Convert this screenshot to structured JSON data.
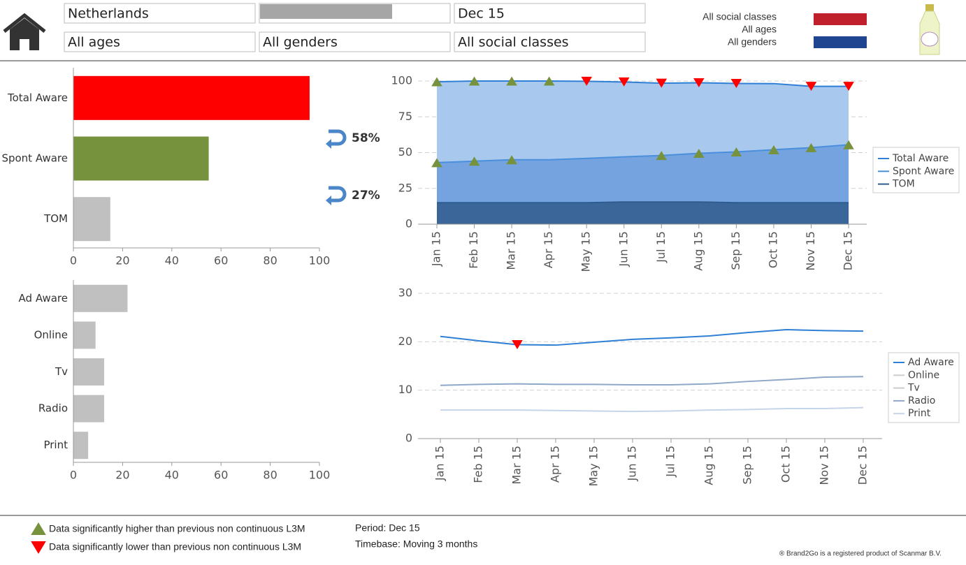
{
  "header": {
    "filters": {
      "country": "Netherlands",
      "period": "Dec 15",
      "age": "All ages",
      "gender": "All genders",
      "social_class": "All social classes"
    },
    "selection_labels": [
      "All social classes",
      "All ages",
      "All genders"
    ],
    "selection_colors": [
      "#c0202b",
      "#1f4591"
    ]
  },
  "significance_colors": {
    "up": "#76923c",
    "down": "#ff0000"
  },
  "chart_data": [
    {
      "type": "hbar",
      "categories": [
        "Total Aware",
        "Spont Aware",
        "TOM"
      ],
      "values": [
        96,
        55,
        15
      ],
      "colors": [
        "#ff0000",
        "#76923c",
        "#c0c0c0"
      ],
      "xlim": [
        0,
        100
      ],
      "xticks": [
        0,
        20,
        40,
        60,
        80,
        100
      ],
      "annotations": [
        {
          "text": "58%",
          "color": "#76923c"
        },
        {
          "text": "27%",
          "color": "#c00000"
        }
      ]
    },
    {
      "type": "area",
      "categories": [
        "Jan 15",
        "Feb 15",
        "Mar 15",
        "Apr 15",
        "May 15",
        "Jun 15",
        "Jul 15",
        "Aug 15",
        "Sep 15",
        "Oct 15",
        "Nov 15",
        "Dec 15"
      ],
      "ylim": [
        0,
        105
      ],
      "yticks": [
        0,
        25,
        50,
        75,
        100
      ],
      "grid": true,
      "series": [
        {
          "name": "Total Aware",
          "color": "#2e7fd6",
          "fill": "#a9c8ee",
          "values": [
            99.5,
            100,
            100,
            100,
            99.8,
            99.3,
            98.5,
            98.8,
            98.3,
            98.2,
            96.3,
            96.3
          ],
          "markers": [
            "up",
            "up",
            "up",
            "up",
            "down",
            "down",
            "down",
            "down",
            "down",
            null,
            "down",
            "down"
          ]
        },
        {
          "name": "Spont Aware",
          "color": "#4a8fdb",
          "fill": "#74a3e0",
          "values": [
            43,
            44,
            45,
            45,
            46,
            47,
            48,
            49.5,
            50.5,
            52,
            53.5,
            55.5
          ],
          "markers": [
            "up",
            "up",
            "up",
            null,
            null,
            null,
            "up",
            "up",
            "up",
            "up",
            "up",
            "up"
          ]
        },
        {
          "name": "TOM",
          "color": "#2f5c8f",
          "fill": "#3a6699",
          "values": [
            15,
            15,
            15,
            15,
            15,
            15.5,
            15.5,
            15.5,
            15,
            15,
            15,
            15
          ],
          "markers": [
            null,
            null,
            null,
            null,
            null,
            null,
            null,
            null,
            null,
            null,
            null,
            null
          ]
        }
      ]
    },
    {
      "type": "line",
      "categories": [
        "Jan 15",
        "Feb 15",
        "Mar 15",
        "Apr 15",
        "May 15",
        "Jun 15",
        "Jul 15",
        "Aug 15",
        "Sep 15",
        "Oct 15",
        "Nov 15",
        "Dec 15"
      ],
      "ylim": [
        0,
        30
      ],
      "yticks": [
        0,
        10,
        20,
        30
      ],
      "grid": true,
      "series": [
        {
          "name": "Ad Aware",
          "color": "#2e7fd6",
          "visible": true,
          "values": [
            21.1,
            20.2,
            19.4,
            19.3,
            19.9,
            20.5,
            20.8,
            21.2,
            21.9,
            22.5,
            22.3,
            22.2
          ],
          "markers": [
            null,
            null,
            "down",
            null,
            null,
            null,
            null,
            null,
            null,
            null,
            null,
            null
          ]
        },
        {
          "name": "Online",
          "color": "#cccccc",
          "visible": false
        },
        {
          "name": "Tv",
          "color": "#cccccc",
          "visible": false
        },
        {
          "name": "Radio",
          "color": "#8fa8c8",
          "visible": true,
          "values": [
            11,
            11.2,
            11.3,
            11.2,
            11.2,
            11.1,
            11.1,
            11.3,
            11.8,
            12.2,
            12.7,
            12.8
          ],
          "markers": [
            null,
            null,
            null,
            null,
            null,
            null,
            null,
            null,
            null,
            null,
            null,
            null
          ]
        },
        {
          "name": "Print",
          "color": "#c5d5ea",
          "visible": true,
          "values": [
            5.9,
            5.9,
            5.9,
            5.8,
            5.7,
            5.6,
            5.7,
            5.9,
            6.0,
            6.2,
            6.2,
            6.4
          ],
          "markers": [
            null,
            null,
            null,
            null,
            null,
            null,
            null,
            null,
            null,
            null,
            null,
            null
          ]
        }
      ]
    },
    {
      "type": "hbar",
      "categories": [
        "Ad Aware",
        "Online",
        "Tv",
        "Radio",
        "Print"
      ],
      "values": [
        22,
        9,
        12.5,
        12.5,
        6
      ],
      "colors": [
        "#c0c0c0",
        "#c0c0c0",
        "#c0c0c0",
        "#c0c0c0",
        "#c0c0c0"
      ],
      "xlim": [
        0,
        100
      ],
      "xticks": [
        0,
        20,
        40,
        60,
        80,
        100
      ]
    }
  ],
  "footer": {
    "higher": "Data significantly higher than previous non continuous L3M",
    "lower": "Data significantly lower than previous non continuous L3M",
    "period": "Period: Dec 15",
    "timebase": "Timebase: Moving 3 months",
    "copyright": "® Brand2Go is a registered product of Scanmar B.V."
  }
}
